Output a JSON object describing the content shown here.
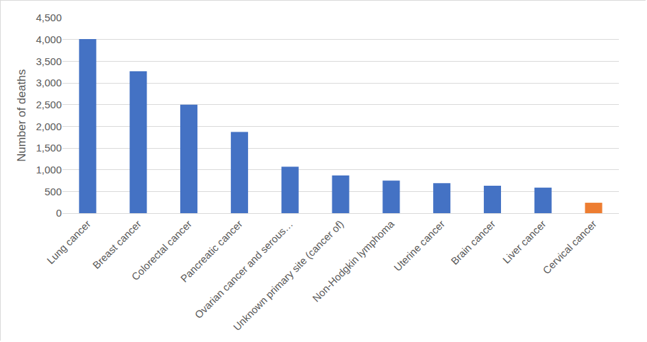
{
  "chart_data": {
    "type": "bar",
    "y_label": "Number of deaths",
    "categories": [
      "Lung cancer",
      "Breast cancer",
      "Colorectal cancer",
      "Pancreatic cancer",
      "Ovarian cancer and serous…",
      "Unknown primary site (cancer of)",
      "Non-Hodgkin lymphoma",
      "Uterine cancer",
      "Brain cancer",
      "Liver cancer",
      "Cervical cancer"
    ],
    "values": [
      4010,
      3270,
      2500,
      1870,
      1070,
      870,
      750,
      690,
      630,
      590,
      240
    ],
    "colors": [
      "#4472c4",
      "#4472c4",
      "#4472c4",
      "#4472c4",
      "#4472c4",
      "#4472c4",
      "#4472c4",
      "#4472c4",
      "#4472c4",
      "#4472c4",
      "#ed7d31"
    ],
    "ylim": [
      0,
      4500
    ],
    "yticks": [
      0,
      500,
      {
        "value": 1000,
        "label": "1,000"
      },
      {
        "value": 1500,
        "label": "1,500"
      },
      {
        "value": 2000,
        "label": "2,000"
      },
      {
        "value": 2500,
        "label": "2,500"
      },
      {
        "value": 3000,
        "label": "3,000"
      },
      {
        "value": 3500,
        "label": "3,500"
      },
      {
        "value": 4000,
        "label": "4,000"
      },
      {
        "value": 4500,
        "label": "4,500"
      }
    ],
    "grid": true
  }
}
